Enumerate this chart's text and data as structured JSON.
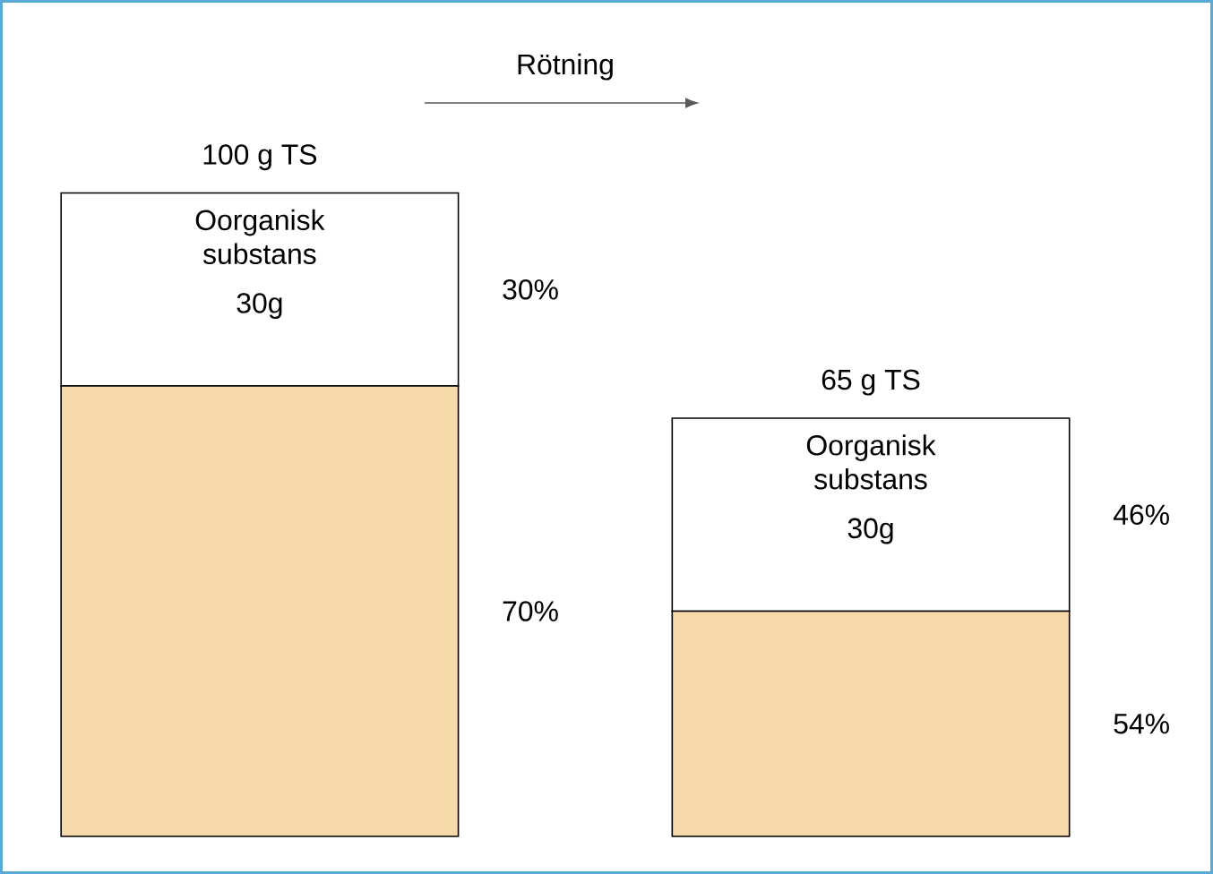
{
  "chart_data": {
    "type": "bar",
    "stacked": true,
    "categories": [
      null,
      null
    ],
    "series": [
      {
        "color": "#f6d9a9",
        "values": [
          70,
          35
        ]
      },
      {
        "name": "Oorganisk substans",
        "color": "#ffffff",
        "values": [
          30,
          30
        ],
        "value_labels": [
          "30g",
          "30g"
        ]
      }
    ],
    "totals": [
      "100 g TS",
      "65 g TS"
    ],
    "annotations": [
      "Rötning",
      "30%",
      "70%",
      "46%",
      "54%"
    ]
  }
}
